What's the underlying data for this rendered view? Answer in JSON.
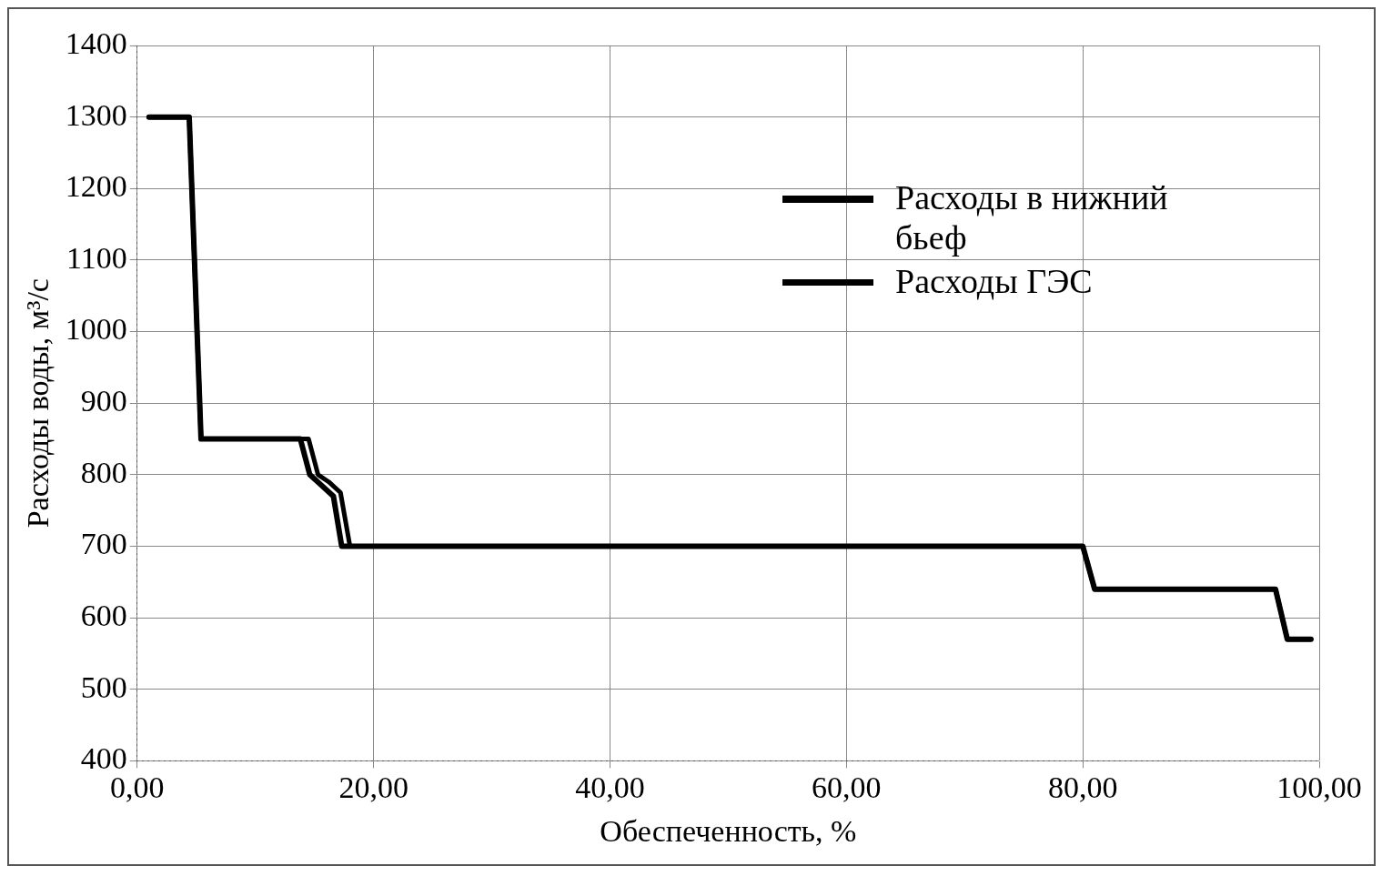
{
  "chart_data": {
    "type": "line",
    "xlabel": "Обеспеченность, %",
    "ylabel": "Расходы воды, м³/с",
    "xlim": [
      0,
      100
    ],
    "xticks": [
      {
        "value": 0,
        "label": "0,00"
      },
      {
        "value": 20,
        "label": "20,00"
      },
      {
        "value": 40,
        "label": "40,00"
      },
      {
        "value": 60,
        "label": "60,00"
      },
      {
        "value": 80,
        "label": "80,00"
      },
      {
        "value": 100,
        "label": "100,00"
      }
    ],
    "ylim": [
      400,
      1400
    ],
    "yticks": [
      400,
      500,
      600,
      700,
      800,
      900,
      1000,
      1100,
      1200,
      1300,
      1400
    ],
    "grid": true,
    "legend": "top right",
    "line_style": "solid",
    "marker": "none",
    "series": [
      {
        "name": "Расходы в нижний бьеф",
        "color": "#000000",
        "x": [
          1,
          4.4,
          5.4,
          13.8,
          14.6,
          15.6,
          16.6,
          17.3,
          80,
          81,
          96.3,
          97.3,
          99.3
        ],
        "values": [
          1300,
          1300,
          850,
          850,
          800,
          785,
          770,
          700,
          700,
          640,
          640,
          570,
          570
        ]
      },
      {
        "name": "Расходы ГЭС",
        "color": "#000000",
        "x": [
          1,
          4.4,
          5.4,
          14.5,
          15.3,
          16.2,
          17.2,
          18,
          80,
          81,
          96.3,
          97.3,
          99.3
        ],
        "values": [
          1300,
          1300,
          850,
          850,
          800,
          790,
          775,
          700,
          700,
          640,
          640,
          570,
          570
        ]
      }
    ]
  }
}
